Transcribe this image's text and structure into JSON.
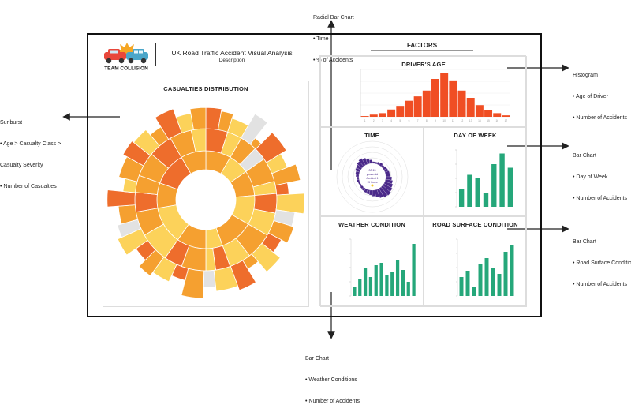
{
  "header": {
    "logo_text": "TEAM COLLISION",
    "title": "UK Road Traffic Accident Visual Analysis",
    "description": "Description"
  },
  "casualties": {
    "title": "CASUALTIES DISTRIBUTION"
  },
  "factors": {
    "title": "FACTORS"
  },
  "panels": {
    "drivers_age": "DRIVER'S AGE",
    "time": "TIME",
    "day_of_week": "DAY OF WEEK",
    "weather": "WEATHER CONDITION",
    "road_surface": "ROAD SURFACE CONDITION"
  },
  "time_center": {
    "line1": "00:15",
    "line2": "years old",
    "line3": "Accident 1",
    "line4": "15 Hours"
  },
  "annotations": {
    "radial": {
      "title": "Radial Bar Chart",
      "items": [
        "• Time",
        "• % of Accidents"
      ]
    },
    "histogram": {
      "title": "Histogram",
      "items": [
        "• Age of Driver",
        "• Number of Accidents"
      ]
    },
    "bar_day": {
      "title": "Bar Chart",
      "items": [
        "• Day of Week",
        "• Number of Accidents"
      ]
    },
    "bar_road": {
      "title": "Bar Chart",
      "items": [
        "• Road Surface Conditions",
        "• Number of Accidents"
      ]
    },
    "bar_weather": {
      "title": "Bar Chart",
      "items": [
        "• Weather Conditions",
        "• Number of Accidents"
      ]
    },
    "sunburst": {
      "title": "Sunburst",
      "items": [
        "• Age > Casualty Class  >",
        "  Casualty Severity",
        "• Number of Casualties"
      ]
    }
  },
  "colors": {
    "histogram": "#f04e23",
    "bars": "#25a77a",
    "radial": "#4b2a8a",
    "sun_yellow": "#fcd25a",
    "sun_orange": "#f5a030",
    "sun_dark": "#ee6d2c",
    "sun_grey": "#e2e2e2"
  },
  "chart_data": [
    {
      "type": "bar",
      "title": "DRIVER'S AGE",
      "categories": [
        "1",
        "2",
        "3",
        "4",
        "5",
        "6",
        "7",
        "8",
        "9",
        "10",
        "11",
        "12",
        "13",
        "14",
        "15",
        "16",
        "17"
      ],
      "values": [
        1,
        3,
        5,
        10,
        15,
        22,
        28,
        36,
        52,
        60,
        50,
        36,
        26,
        16,
        9,
        5,
        2
      ],
      "ylim": [
        0,
        65
      ]
    },
    {
      "type": "radial-bar",
      "title": "TIME",
      "values": [
        3,
        3,
        4,
        5,
        4,
        5,
        6,
        7,
        8,
        10,
        12,
        14,
        16,
        18,
        17,
        15,
        12,
        10,
        8,
        7,
        6,
        5,
        4,
        3,
        3,
        4,
        3,
        5,
        6,
        8,
        9,
        11,
        13,
        11,
        8,
        6
      ]
    },
    {
      "type": "bar",
      "title": "DAY OF WEEK",
      "values": [
        5,
        9,
        8,
        4,
        12,
        15,
        11
      ],
      "ylim": [
        0,
        16
      ]
    },
    {
      "type": "bar",
      "title": "WEATHER CONDITION",
      "values": [
        4,
        7,
        12,
        8,
        13,
        14,
        9,
        10,
        15,
        11,
        6,
        22
      ],
      "ylim": [
        0,
        24
      ]
    },
    {
      "type": "bar",
      "title": "ROAD SURFACE CONDITION",
      "values": [
        6,
        8,
        3,
        10,
        12,
        9,
        7,
        14,
        16
      ],
      "ylim": [
        0,
        18
      ]
    },
    {
      "type": "sunburst",
      "title": "CASUALTIES DISTRIBUTION",
      "ring1": [
        {
          "v": 30,
          "c": "#f5a030"
        },
        {
          "v": 25,
          "c": "#fcd25a"
        },
        {
          "v": 30,
          "c": "#f5a030"
        },
        {
          "v": 35,
          "c": "#fcd25a"
        },
        {
          "v": 40,
          "c": "#f5a030"
        },
        {
          "v": 20,
          "c": "#fcd25a"
        },
        {
          "v": 35,
          "c": "#f5a030"
        },
        {
          "v": 45,
          "c": "#fcd25a"
        },
        {
          "v": 30,
          "c": "#f5a030"
        },
        {
          "v": 40,
          "c": "#ee6d2c"
        },
        {
          "v": 30,
          "c": "#f5a030"
        }
      ],
      "ring2": [
        {
          "v": 18,
          "c": "#ee6d2c"
        },
        {
          "v": 12,
          "c": "#fcd25a"
        },
        {
          "v": 14,
          "c": "#f5a030"
        },
        {
          "v": 11,
          "c": "#e2e2e2"
        },
        {
          "v": 20,
          "c": "#f5a030"
        },
        {
          "v": 10,
          "c": "#fcd25a"
        },
        {
          "v": 16,
          "c": "#ee6d2c"
        },
        {
          "v": 19,
          "c": "#fcd25a"
        },
        {
          "v": 22,
          "c": "#f5a030"
        },
        {
          "v": 18,
          "c": "#fcd25a"
        },
        {
          "v": 12,
          "c": "#ee6d2c"
        },
        {
          "v": 8,
          "c": "#fcd25a"
        },
        {
          "v": 20,
          "c": "#f5a030"
        },
        {
          "v": 15,
          "c": "#ee6d2c"
        },
        {
          "v": 25,
          "c": "#fcd25a"
        },
        {
          "v": 20,
          "c": "#f5a030"
        },
        {
          "v": 16,
          "c": "#ee6d2c"
        },
        {
          "v": 14,
          "c": "#f5a030"
        },
        {
          "v": 20,
          "c": "#f5a030"
        },
        {
          "v": 20,
          "c": "#ee6d2c"
        },
        {
          "v": 18,
          "c": "#f5a030"
        },
        {
          "v": 12,
          "c": "#fcd25a"
        }
      ],
      "ring3": [
        {
          "v": 10,
          "c": "#ee6d2c",
          "d": 0.6
        },
        {
          "v": 8,
          "c": "#f5a030",
          "d": 0.5
        },
        {
          "v": 12,
          "c": "#fcd25a",
          "d": 0.3
        },
        {
          "v": 9,
          "c": "#e2e2e2",
          "d": 0.9
        },
        {
          "v": 6,
          "c": "#f5a030",
          "d": 0.0
        },
        {
          "v": 14,
          "c": "#ee6d2c",
          "d": 0.7
        },
        {
          "v": 10,
          "c": "#fcd25a",
          "d": 0.4
        },
        {
          "v": 10,
          "c": "#f5a030",
          "d": 0.8
        },
        {
          "v": 8,
          "c": "#ee6d2c",
          "d": 0.2
        },
        {
          "v": 12,
          "c": "#fcd25a",
          "d": 0.9
        },
        {
          "v": 9,
          "c": "#e2e2e2",
          "d": 0.5
        },
        {
          "v": 11,
          "c": "#f5a030",
          "d": 0.6
        },
        {
          "v": 10,
          "c": "#ee6d2c",
          "d": 0.3
        },
        {
          "v": 12,
          "c": "#fcd25a",
          "d": 0.7
        },
        {
          "v": 9,
          "c": "#f5a030",
          "d": 0.1
        },
        {
          "v": 11,
          "c": "#ee6d2c",
          "d": 0.8
        },
        {
          "v": 14,
          "c": "#fcd25a",
          "d": 0.6
        },
        {
          "v": 8,
          "c": "#e2e2e2",
          "d": 0.4
        },
        {
          "v": 13,
          "c": "#f5a030",
          "d": 0.9
        },
        {
          "v": 10,
          "c": "#ee6d2c",
          "d": 0.2
        },
        {
          "v": 12,
          "c": "#fcd25a",
          "d": 0.5
        },
        {
          "v": 9,
          "c": "#f5a030",
          "d": 0.7
        },
        {
          "v": 10,
          "c": "#ee6d2c",
          "d": 0.3
        },
        {
          "v": 11,
          "c": "#fcd25a",
          "d": 0.8
        },
        {
          "v": 8,
          "c": "#e2e2e2",
          "d": 0.6
        },
        {
          "v": 12,
          "c": "#f5a030",
          "d": 0.4
        },
        {
          "v": 10,
          "c": "#ee6d2c",
          "d": 0.9
        },
        {
          "v": 9,
          "c": "#fcd25a",
          "d": 0.2
        },
        {
          "v": 14,
          "c": "#f5a030",
          "d": 0.5
        },
        {
          "v": 10,
          "c": "#ee6d2c",
          "d": 0.7
        },
        {
          "v": 11,
          "c": "#fcd25a",
          "d": 0.6
        },
        {
          "v": 9,
          "c": "#f5a030",
          "d": 0.3
        },
        {
          "v": 12,
          "c": "#ee6d2c",
          "d": 0.8
        },
        {
          "v": 10,
          "c": "#fcd25a",
          "d": 0.4
        },
        {
          "v": 10,
          "c": "#f5a030",
          "d": 0.6
        }
      ]
    }
  ]
}
